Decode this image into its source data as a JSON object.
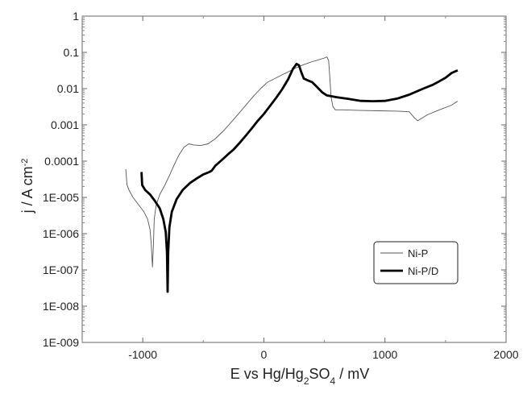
{
  "chart_data": {
    "type": "line",
    "title": "",
    "xlabel": {
      "parts": [
        {
          "t": "E vs Hg/Hg"
        },
        {
          "t": "2",
          "sub": true
        },
        {
          "t": "SO"
        },
        {
          "t": "4",
          "sub": true
        },
        {
          "t": " / mV"
        }
      ]
    },
    "ylabel": {
      "parts": [
        {
          "t": "j / A cm"
        },
        {
          "t": "-2",
          "sup": true
        }
      ]
    },
    "xlim": [
      -1500,
      2000
    ],
    "ylim_log10": [
      -9,
      0
    ],
    "y_scale": "log",
    "grid": false,
    "x_ticks": [
      {
        "value": -1000,
        "label": "-1000"
      },
      {
        "value": 0,
        "label": "0"
      },
      {
        "value": 1000,
        "label": "1000"
      },
      {
        "value": 2000,
        "label": "2000"
      }
    ],
    "y_ticks": [
      {
        "value": 1,
        "label": "1"
      },
      {
        "value": 0.1,
        "label": "0.1"
      },
      {
        "value": 0.01,
        "label": "0.01"
      },
      {
        "value": 0.001,
        "label": "0.001"
      },
      {
        "value": 0.0001,
        "label": "0.0001"
      },
      {
        "value": 1e-05,
        "label": "1E-005"
      },
      {
        "value": 1e-06,
        "label": "1E-006"
      },
      {
        "value": 1e-07,
        "label": "1E-007"
      },
      {
        "value": 1e-08,
        "label": "1E-008"
      },
      {
        "value": 1e-09,
        "label": "1E-009"
      }
    ],
    "legend": {
      "placement": "lower-right",
      "entries": [
        "Ni-P",
        "Ni-P/D"
      ]
    },
    "series": [
      {
        "name": "Ni-P",
        "color": "#555555",
        "line_weight": "thin",
        "points": [
          [
            -1140,
            6e-05
          ],
          [
            -1130,
            2.2e-05
          ],
          [
            -1110,
            1.5e-05
          ],
          [
            -1080,
            1e-05
          ],
          [
            -1030,
            6e-06
          ],
          [
            -990,
            4e-06
          ],
          [
            -960,
            2.5e-06
          ],
          [
            -940,
            1.3e-06
          ],
          [
            -930,
            5e-07
          ],
          [
            -920,
            1.2e-07
          ],
          [
            -912,
            5e-07
          ],
          [
            -905,
            2.5e-06
          ],
          [
            -890,
            6e-06
          ],
          [
            -860,
            1.2e-05
          ],
          [
            -820,
            2.1e-05
          ],
          [
            -780,
            4e-05
          ],
          [
            -740,
            8e-05
          ],
          [
            -700,
            0.00015
          ],
          [
            -660,
            0.00024
          ],
          [
            -620,
            0.0003
          ],
          [
            -580,
            0.00028
          ],
          [
            -520,
            0.00027
          ],
          [
            -460,
            0.0003
          ],
          [
            -400,
            0.00042
          ],
          [
            -330,
            0.0007
          ],
          [
            -260,
            0.0013
          ],
          [
            -200,
            0.0022
          ],
          [
            -140,
            0.0038
          ],
          [
            -80,
            0.0065
          ],
          [
            -20,
            0.0105
          ],
          [
            30,
            0.015
          ],
          [
            90,
            0.019
          ],
          [
            150,
            0.024
          ],
          [
            210,
            0.03
          ],
          [
            270,
            0.038
          ],
          [
            330,
            0.046
          ],
          [
            390,
            0.054
          ],
          [
            450,
            0.062
          ],
          [
            500,
            0.07
          ],
          [
            520,
            0.075
          ],
          [
            535,
            0.06
          ],
          [
            545,
            0.02
          ],
          [
            555,
            0.006
          ],
          [
            570,
            0.0032
          ],
          [
            590,
            0.0026
          ],
          [
            650,
            0.0026
          ],
          [
            800,
            0.0025
          ],
          [
            950,
            0.00245
          ],
          [
            1100,
            0.0024
          ],
          [
            1200,
            0.0023
          ],
          [
            1240,
            0.0016
          ],
          [
            1270,
            0.0013
          ],
          [
            1300,
            0.0015
          ],
          [
            1350,
            0.0019
          ],
          [
            1450,
            0.0026
          ],
          [
            1550,
            0.0035
          ],
          [
            1600,
            0.0045
          ]
        ]
      },
      {
        "name": "Ni-P/D",
        "color": "#000000",
        "line_weight": "thick",
        "points": [
          [
            -1010,
            5e-05
          ],
          [
            -1005,
            2.2e-05
          ],
          [
            -980,
            1.6e-05
          ],
          [
            -940,
            1.2e-05
          ],
          [
            -900,
            8e-06
          ],
          [
            -860,
            5e-06
          ],
          [
            -830,
            2.5e-06
          ],
          [
            -810,
            1.1e-06
          ],
          [
            -800,
            3e-07
          ],
          [
            -795,
            2.5e-08
          ],
          [
            -790,
            3e-07
          ],
          [
            -780,
            1.5e-06
          ],
          [
            -760,
            4e-06
          ],
          [
            -720,
            9e-06
          ],
          [
            -670,
            1.6e-05
          ],
          [
            -610,
            2.5e-05
          ],
          [
            -550,
            3.4e-05
          ],
          [
            -500,
            4.3e-05
          ],
          [
            -450,
            5e-05
          ],
          [
            -430,
            5.5e-05
          ],
          [
            -400,
            7.5e-05
          ],
          [
            -350,
            0.000105
          ],
          [
            -300,
            0.00015
          ],
          [
            -250,
            0.00021
          ],
          [
            -200,
            0.00032
          ],
          [
            -150,
            0.0005
          ],
          [
            -100,
            0.0008
          ],
          [
            -50,
            0.0013
          ],
          [
            0,
            0.002
          ],
          [
            50,
            0.0033
          ],
          [
            100,
            0.0055
          ],
          [
            150,
            0.0095
          ],
          [
            200,
            0.018
          ],
          [
            240,
            0.035
          ],
          [
            270,
            0.048
          ],
          [
            290,
            0.044
          ],
          [
            310,
            0.028
          ],
          [
            330,
            0.019
          ],
          [
            360,
            0.017
          ],
          [
            400,
            0.015
          ],
          [
            440,
            0.011
          ],
          [
            480,
            0.008
          ],
          [
            520,
            0.0065
          ],
          [
            600,
            0.0058
          ],
          [
            700,
            0.0052
          ],
          [
            800,
            0.0046
          ],
          [
            900,
            0.0045
          ],
          [
            1000,
            0.0046
          ],
          [
            1100,
            0.0053
          ],
          [
            1200,
            0.0068
          ],
          [
            1300,
            0.0095
          ],
          [
            1400,
            0.013
          ],
          [
            1450,
            0.016
          ],
          [
            1500,
            0.02
          ],
          [
            1550,
            0.027
          ],
          [
            1600,
            0.032
          ]
        ]
      }
    ]
  }
}
